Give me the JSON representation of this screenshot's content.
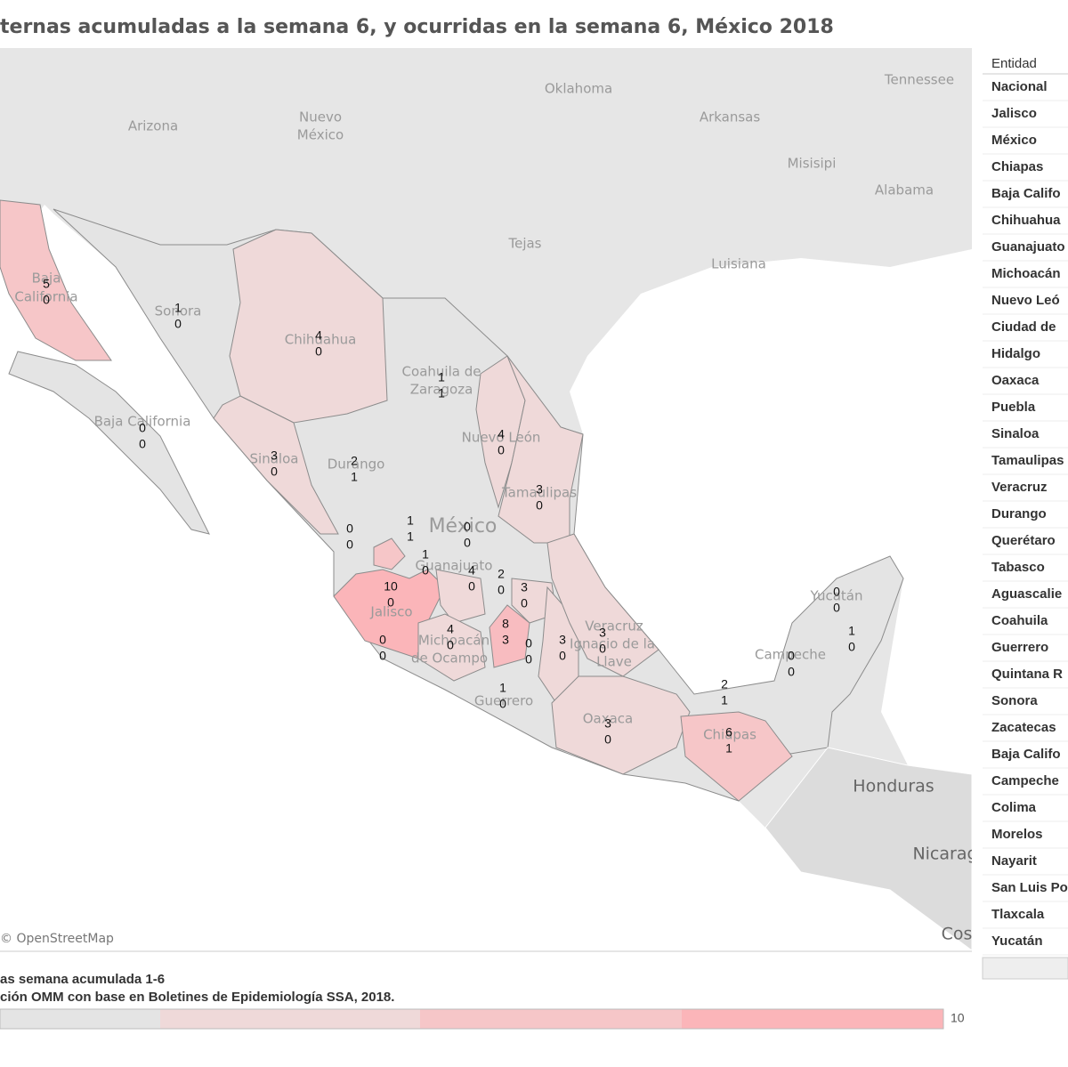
{
  "title": "ternas acumuladas a la semana 6, y ocurridas en la semana 6, México 2018",
  "map": {
    "attribution": "© OpenStreetMap",
    "place_labels": [
      "Oklahoma",
      "Tennessee",
      "Arizona",
      "Nuevo",
      "México",
      "Arkansas",
      "Misisipi",
      "Alabama",
      "Tejas",
      "Luisiana",
      "Baja",
      "California",
      "Sonora",
      "Chihuahua",
      "Coahuila de",
      "Zaragoza",
      "Nuevo León",
      "Baja California",
      "Sinaloa",
      "Durango",
      "Tamaulipas",
      "México",
      "Guanajuato",
      "Jalisco",
      "Michoacán",
      "de Ocampo",
      "Guerrero",
      "Oaxaca",
      "Veracruz",
      "Ignacio de la",
      "Llave",
      "Chiapas",
      "Campeche",
      "Yucatán",
      "Honduras",
      "Nicarag",
      "Cos"
    ],
    "regions": [
      {
        "acumuladas": 5,
        "semana": 0,
        "color": "#f6c6c8"
      },
      {
        "acumuladas": 1,
        "semana": 0,
        "color": "#e4e4e4"
      },
      {
        "acumuladas": 4,
        "semana": 0,
        "color": "#efd9d9"
      },
      {
        "acumuladas": 1,
        "semana": 1,
        "color": "#e4e4e4"
      },
      {
        "acumuladas": 0,
        "semana": 0,
        "color": "#e4e4e4"
      },
      {
        "acumuladas": 4,
        "semana": 0,
        "color": "#efd9d9"
      },
      {
        "acumuladas": 3,
        "semana": 0,
        "color": "#efd9d9"
      },
      {
        "acumuladas": 2,
        "semana": 1,
        "color": "#e4e4e4"
      },
      {
        "acumuladas": 3,
        "semana": 0,
        "color": "#efd9d9"
      },
      {
        "acumuladas": 1,
        "semana": 1,
        "color": "#e4e4e4"
      },
      {
        "acumuladas": 0,
        "semana": 0,
        "color": "#e4e4e4"
      },
      {
        "acumuladas": 0,
        "semana": 0,
        "color": "#e4e4e4"
      },
      {
        "acumuladas": 1,
        "semana": 0,
        "color": "#f6c6c8"
      },
      {
        "acumuladas": 10,
        "semana": 0,
        "color": "#fbb5b9"
      },
      {
        "acumuladas": 4,
        "semana": 0,
        "color": "#efd9d9"
      },
      {
        "acumuladas": 2,
        "semana": 0,
        "color": "#e4e4e4"
      },
      {
        "acumuladas": 3,
        "semana": 0,
        "color": "#efd9d9"
      },
      {
        "acumuladas": 0,
        "semana": 0,
        "color": "#e4e4e4"
      },
      {
        "acumuladas": 4,
        "semana": 0,
        "color": "#efd9d9"
      },
      {
        "acumuladas": 8,
        "semana": 3,
        "color": "#f8bcc0"
      },
      {
        "acumuladas": 0,
        "semana": 0,
        "color": "#e4e4e4"
      },
      {
        "acumuladas": 3,
        "semana": 0,
        "color": "#efd9d9"
      },
      {
        "acumuladas": 3,
        "semana": 0,
        "color": "#efd9d9"
      },
      {
        "acumuladas": 1,
        "semana": 0,
        "color": "#e4e4e4"
      },
      {
        "acumuladas": 3,
        "semana": 0,
        "color": "#efd9d9"
      },
      {
        "acumuladas": 2,
        "semana": 1,
        "color": "#e4e4e4"
      },
      {
        "acumuladas": 6,
        "semana": 1,
        "color": "#f6c6c8"
      },
      {
        "acumuladas": 0,
        "semana": 0,
        "color": "#e4e4e4"
      },
      {
        "acumuladas": 0,
        "semana": 0,
        "color": "#e4e4e4"
      },
      {
        "acumuladas": 1,
        "semana": 0,
        "color": "#e4e4e4"
      }
    ]
  },
  "footer": {
    "line1": "as semana acumulada 1-6",
    "line2": "ción OMM con base en Boletines de Epidemiología SSA, 2018."
  },
  "legend": {
    "max": 10,
    "colors": [
      "#e4e4e4",
      "#efd9d9",
      "#f6c6c8",
      "#fbb5b9"
    ]
  },
  "table": {
    "header": "Entidad",
    "rows": [
      "Nacional",
      "Jalisco",
      "México",
      "Chiapas",
      "Baja Califo",
      "Chihuahua",
      "Guanajuato",
      "Michoacán",
      "Nuevo Leó",
      "Ciudad de",
      "Hidalgo",
      "Oaxaca",
      "Puebla",
      "Sinaloa",
      "Tamaulipas",
      "Veracruz",
      "Durango",
      "Querétaro",
      "Tabasco",
      "Aguascalie",
      "Coahuila",
      "Guerrero",
      "Quintana R",
      "Sonora",
      "Zacatecas",
      "Baja Califo",
      "Campeche",
      "Colima",
      "Morelos",
      "Nayarit",
      "San Luis Po",
      "Tlaxcala",
      "Yucatán"
    ]
  }
}
